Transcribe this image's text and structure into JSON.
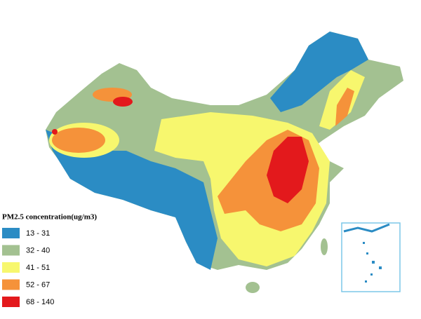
{
  "legend": {
    "title": "PM2.5 concentration(ug/m3)",
    "items": [
      {
        "label": "13 - 31",
        "color": "#2b8cc4"
      },
      {
        "label": "32 - 40",
        "color": "#a3c191"
      },
      {
        "label": "41 - 51",
        "color": "#f7f76e"
      },
      {
        "label": "52 - 67",
        "color": "#f5923a"
      },
      {
        "label": "68 - 140",
        "color": "#e3191c"
      }
    ]
  }
}
